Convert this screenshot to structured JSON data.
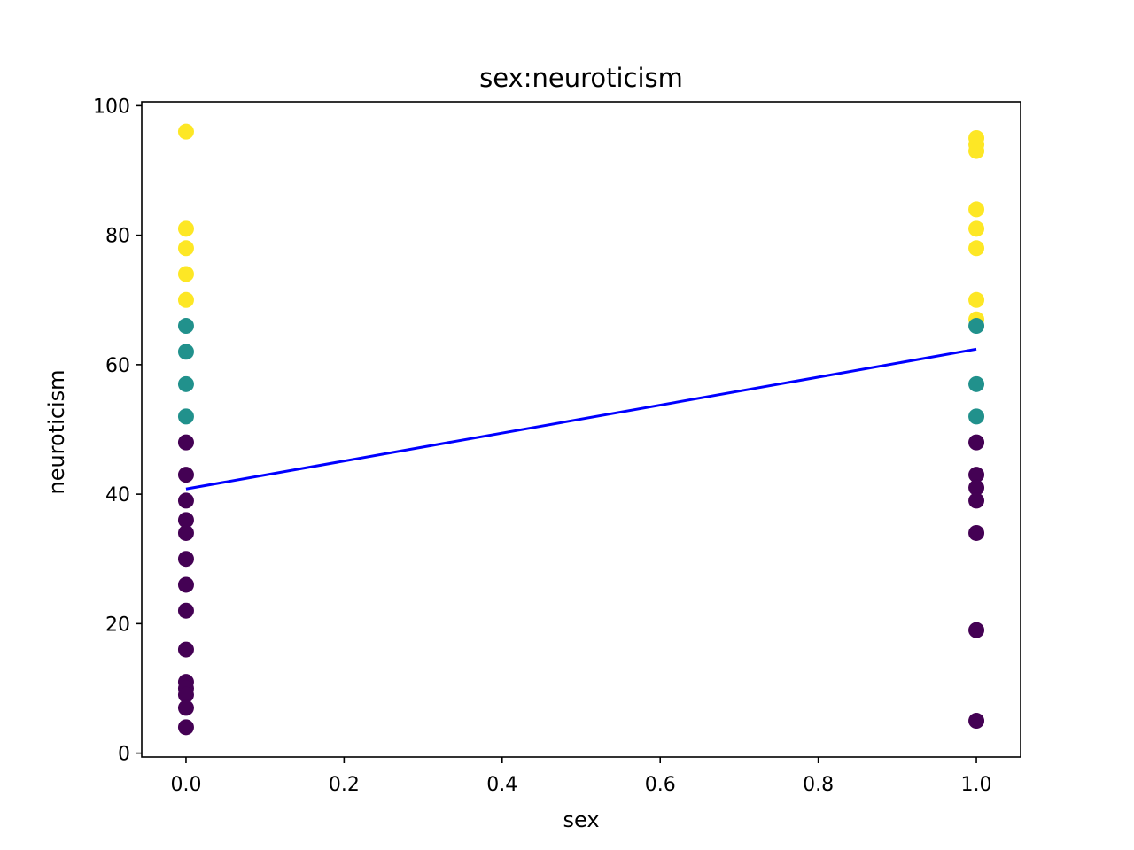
{
  "chart_data": {
    "type": "scatter",
    "title": "sex:neuroticism",
    "xlabel": "sex",
    "ylabel": "neuroticism",
    "xlim": [
      -0.056,
      1.056
    ],
    "ylim": [
      -0.6,
      100.6
    ],
    "xticks": [
      0.0,
      0.2,
      0.4,
      0.6,
      0.8,
      1.0
    ],
    "xtick_labels": [
      "0.0",
      "0.2",
      "0.4",
      "0.6",
      "0.8",
      "1.0"
    ],
    "yticks": [
      0,
      20,
      40,
      60,
      80,
      100
    ],
    "ytick_labels": [
      "0",
      "20",
      "40",
      "60",
      "80",
      "100"
    ],
    "grid": false,
    "legend": "none",
    "colors": {
      "low": "#440154",
      "mid": "#21918c",
      "high": "#fde725",
      "fit_line": "#0000ff"
    },
    "points": [
      {
        "x": 0,
        "y": 96,
        "group": "high"
      },
      {
        "x": 0,
        "y": 81,
        "group": "high"
      },
      {
        "x": 0,
        "y": 78,
        "group": "high"
      },
      {
        "x": 0,
        "y": 74,
        "group": "high"
      },
      {
        "x": 0,
        "y": 70,
        "group": "high"
      },
      {
        "x": 0,
        "y": 66,
        "group": "mid"
      },
      {
        "x": 0,
        "y": 62,
        "group": "mid"
      },
      {
        "x": 0,
        "y": 57,
        "group": "mid"
      },
      {
        "x": 0,
        "y": 52,
        "group": "mid"
      },
      {
        "x": 0,
        "y": 48,
        "group": "low"
      },
      {
        "x": 0,
        "y": 43,
        "group": "low"
      },
      {
        "x": 0,
        "y": 39,
        "group": "low"
      },
      {
        "x": 0,
        "y": 36,
        "group": "low"
      },
      {
        "x": 0,
        "y": 34,
        "group": "low"
      },
      {
        "x": 0,
        "y": 30,
        "group": "low"
      },
      {
        "x": 0,
        "y": 26,
        "group": "low"
      },
      {
        "x": 0,
        "y": 22,
        "group": "low"
      },
      {
        "x": 0,
        "y": 16,
        "group": "low"
      },
      {
        "x": 0,
        "y": 11,
        "group": "low"
      },
      {
        "x": 0,
        "y": 10,
        "group": "low"
      },
      {
        "x": 0,
        "y": 9,
        "group": "low"
      },
      {
        "x": 0,
        "y": 7,
        "group": "low"
      },
      {
        "x": 0,
        "y": 4,
        "group": "low"
      },
      {
        "x": 1,
        "y": 95,
        "group": "high"
      },
      {
        "x": 1,
        "y": 94,
        "group": "high"
      },
      {
        "x": 1,
        "y": 93,
        "group": "high"
      },
      {
        "x": 1,
        "y": 84,
        "group": "high"
      },
      {
        "x": 1,
        "y": 81,
        "group": "high"
      },
      {
        "x": 1,
        "y": 78,
        "group": "high"
      },
      {
        "x": 1,
        "y": 70,
        "group": "high"
      },
      {
        "x": 1,
        "y": 67,
        "group": "high"
      },
      {
        "x": 1,
        "y": 66,
        "group": "mid"
      },
      {
        "x": 1,
        "y": 57,
        "group": "mid"
      },
      {
        "x": 1,
        "y": 52,
        "group": "mid"
      },
      {
        "x": 1,
        "y": 48,
        "group": "low"
      },
      {
        "x": 1,
        "y": 43,
        "group": "low"
      },
      {
        "x": 1,
        "y": 41,
        "group": "low"
      },
      {
        "x": 1,
        "y": 39,
        "group": "low"
      },
      {
        "x": 1,
        "y": 34,
        "group": "low"
      },
      {
        "x": 1,
        "y": 19,
        "group": "low"
      },
      {
        "x": 1,
        "y": 5,
        "group": "low"
      }
    ],
    "fit_line": {
      "x": [
        0,
        1
      ],
      "y": [
        40.8,
        62.4
      ]
    }
  }
}
